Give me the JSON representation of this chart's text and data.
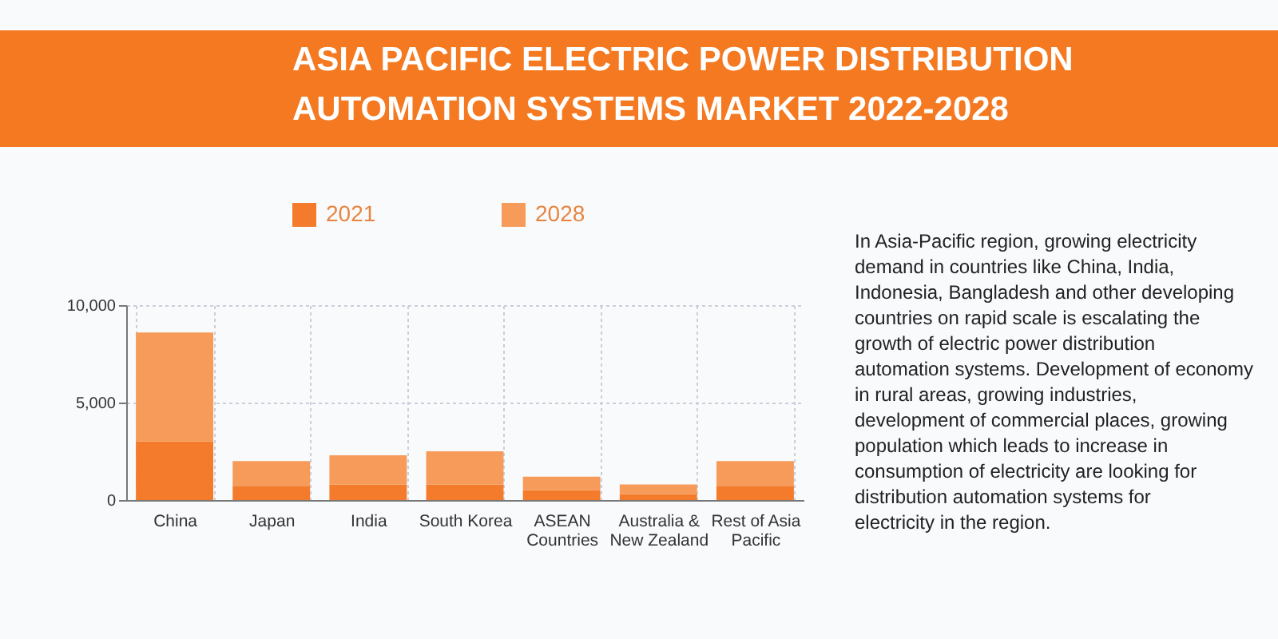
{
  "chart_data": {
    "type": "bar",
    "title": "ASIA PACIFIC ELECTRIC POWER DISTRIBUTION AUTOMATION SYSTEMS MARKET 2022-2028",
    "categories": [
      "China",
      "Japan",
      "India",
      "South Korea",
      "ASEAN Countries",
      "Australia & New Zealand",
      "Rest of Asia Pacific"
    ],
    "series": [
      {
        "name": "2021",
        "color": "#f47b2c",
        "values": [
          3000,
          700,
          800,
          800,
          500,
          300,
          700
        ]
      },
      {
        "name": "2028",
        "color": "#f69b5a",
        "values": [
          5600,
          1300,
          1500,
          1700,
          700,
          500,
          1300
        ]
      }
    ],
    "stacked": true,
    "ylim": [
      0,
      10000
    ],
    "yticks": [
      0,
      {
        "value": 5000,
        "label": "5,000"
      },
      {
        "value": 10000,
        "label": "10,000"
      }
    ],
    "grid": true,
    "legend": "top",
    "annotations": [
      "In Asia-Pacific region, growing electricity demand in countries like China, India, Indonesia, Bangladesh and other developing countries on rapid scale is escalating the growth of electric power distribution automation systems. Development of economy in rural areas, growing industries, development of commercial places, growing population which leads to increase in consumption of electricity are looking for distribution automation systems for electricity in the region."
    ]
  }
}
